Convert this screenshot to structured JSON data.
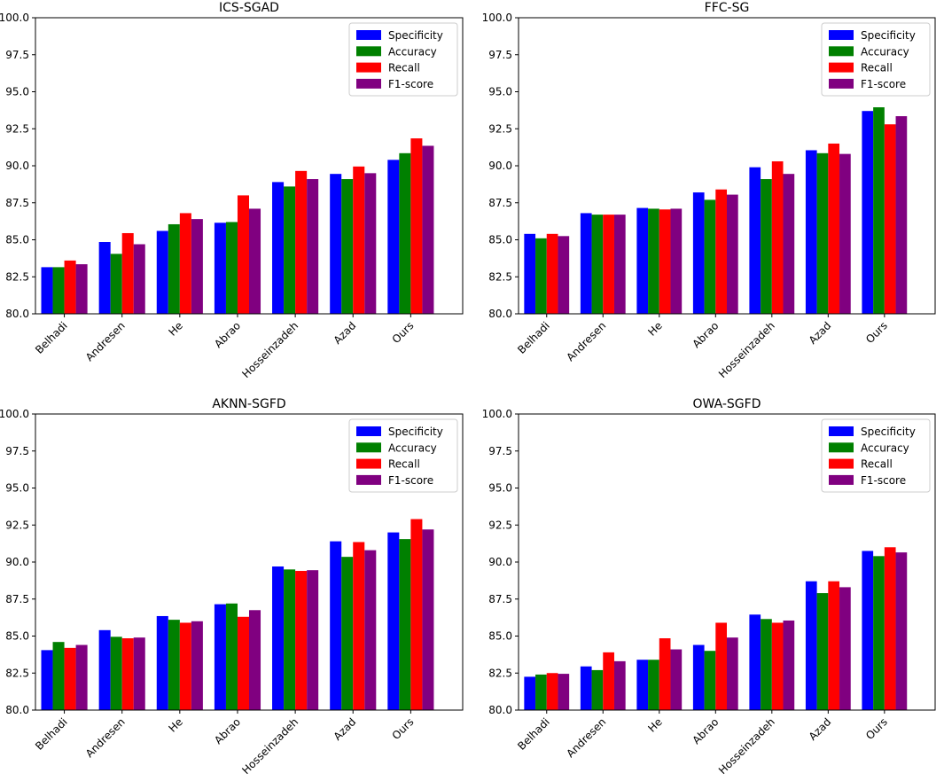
{
  "chart_data": [
    {
      "type": "bar",
      "title": "ICS-SGAD",
      "categories": [
        "Belhadi",
        "Andresen",
        "He",
        "Abrao",
        "Hosseinzadeh",
        "Azad",
        "Ours"
      ],
      "series": [
        {
          "name": "Specificity",
          "values": [
            83.15,
            84.85,
            85.6,
            86.15,
            88.9,
            89.45,
            90.4
          ]
        },
        {
          "name": "Accuracy",
          "values": [
            83.15,
            84.05,
            86.05,
            86.2,
            88.6,
            89.1,
            90.85
          ]
        },
        {
          "name": "Recall",
          "values": [
            83.6,
            85.45,
            86.8,
            88.0,
            89.65,
            89.95,
            91.85
          ]
        },
        {
          "name": "F1-score",
          "values": [
            83.35,
            84.7,
            86.4,
            87.1,
            89.1,
            89.5,
            91.35
          ]
        }
      ],
      "ylim": [
        80,
        100
      ],
      "yticks": [
        "80.0",
        "82.5",
        "85.0",
        "87.5",
        "90.0",
        "92.5",
        "95.0",
        "97.5",
        "100.0"
      ],
      "legend": "top-right",
      "xlabel": "",
      "ylabel": ""
    },
    {
      "type": "bar",
      "title": "FFC-SG",
      "categories": [
        "Belhadi",
        "Andresen",
        "He",
        "Abrao",
        "Hosseinzadeh",
        "Azad",
        "Ours"
      ],
      "series": [
        {
          "name": "Specificity",
          "values": [
            85.4,
            86.8,
            87.15,
            88.2,
            89.9,
            91.05,
            93.7
          ]
        },
        {
          "name": "Accuracy",
          "values": [
            85.1,
            86.7,
            87.1,
            87.7,
            89.1,
            90.85,
            93.95
          ]
        },
        {
          "name": "Recall",
          "values": [
            85.4,
            86.7,
            87.05,
            88.4,
            90.3,
            91.5,
            92.8
          ]
        },
        {
          "name": "F1-score",
          "values": [
            85.25,
            86.7,
            87.1,
            88.05,
            89.45,
            90.8,
            93.35
          ]
        }
      ],
      "ylim": [
        80,
        100
      ],
      "yticks": [
        "80.0",
        "82.5",
        "85.0",
        "87.5",
        "90.0",
        "92.5",
        "95.0",
        "97.5",
        "100.0"
      ],
      "legend": "top-right",
      "xlabel": "",
      "ylabel": ""
    },
    {
      "type": "bar",
      "title": "AKNN-SGFD",
      "categories": [
        "Belhadi",
        "Andresen",
        "He",
        "Abrao",
        "Hosseinzadeh",
        "Azad",
        "Ours"
      ],
      "series": [
        {
          "name": "Specificity",
          "values": [
            84.05,
            85.4,
            86.35,
            87.15,
            89.7,
            91.4,
            92.0
          ]
        },
        {
          "name": "Accuracy",
          "values": [
            84.6,
            84.95,
            86.1,
            87.2,
            89.5,
            90.35,
            91.55
          ]
        },
        {
          "name": "Recall",
          "values": [
            84.2,
            84.85,
            85.9,
            86.3,
            89.4,
            91.35,
            92.9
          ]
        },
        {
          "name": "F1-score",
          "values": [
            84.4,
            84.9,
            86.0,
            86.75,
            89.45,
            90.8,
            92.2
          ]
        }
      ],
      "ylim": [
        80,
        100
      ],
      "yticks": [
        "80.0",
        "82.5",
        "85.0",
        "87.5",
        "90.0",
        "92.5",
        "95.0",
        "97.5",
        "100.0"
      ],
      "legend": "top-right",
      "xlabel": "",
      "ylabel": ""
    },
    {
      "type": "bar",
      "title": "OWA-SGFD",
      "categories": [
        "Belhadi",
        "Andresen",
        "He",
        "Abrao",
        "Hosseinzadeh",
        "Azad",
        "Ours"
      ],
      "series": [
        {
          "name": "Specificity",
          "values": [
            82.25,
            82.95,
            83.4,
            84.4,
            86.45,
            88.7,
            90.75
          ]
        },
        {
          "name": "Accuracy",
          "values": [
            82.4,
            82.7,
            83.4,
            84.0,
            86.15,
            87.9,
            90.4
          ]
        },
        {
          "name": "Recall",
          "values": [
            82.5,
            83.9,
            84.85,
            85.9,
            85.9,
            88.7,
            91.0
          ]
        },
        {
          "name": "F1-score",
          "values": [
            82.45,
            83.3,
            84.1,
            84.9,
            86.05,
            88.3,
            90.65
          ]
        }
      ],
      "ylim": [
        80,
        100
      ],
      "yticks": [
        "80.0",
        "82.5",
        "85.0",
        "87.5",
        "90.0",
        "92.5",
        "95.0",
        "97.5",
        "100.0"
      ],
      "legend": "top-right",
      "xlabel": "",
      "ylabel": ""
    }
  ],
  "colors": {
    "Specificity": "#0000ff",
    "Accuracy": "#008000",
    "Recall": "#ff0000",
    "F1-score": "#800080"
  }
}
